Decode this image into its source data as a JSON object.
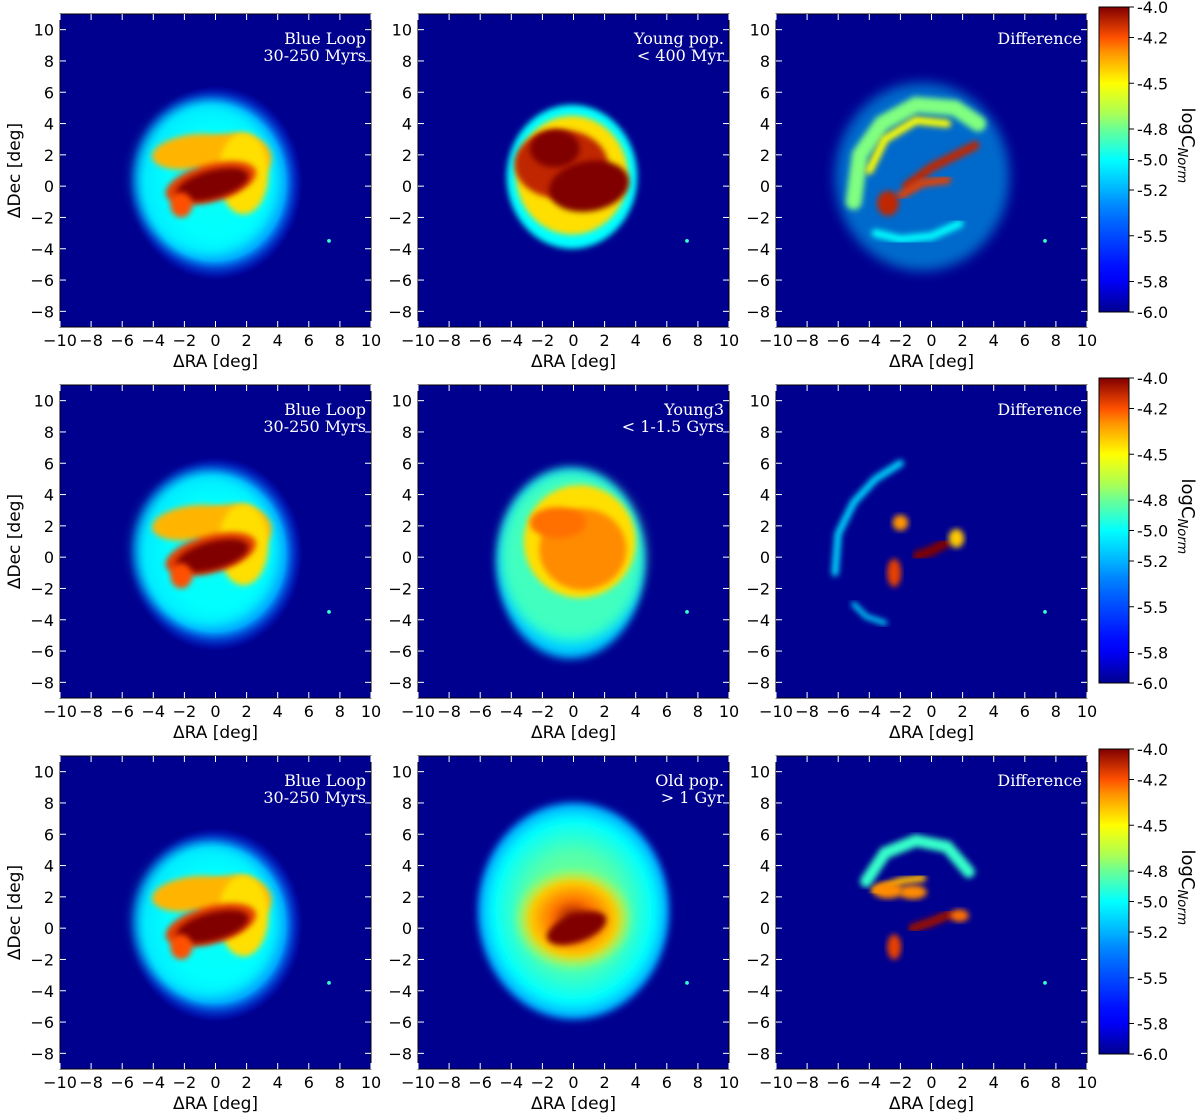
{
  "chart_data": {
    "type": "heatmap",
    "xlabel": "ΔRA [deg]",
    "ylabel": "ΔDec [deg]",
    "xlim": [
      -10,
      10
    ],
    "ylim": [
      -9,
      11
    ],
    "xticks": [
      -10,
      -8,
      -6,
      -4,
      -2,
      0,
      2,
      4,
      6,
      8,
      10
    ],
    "yticks": [
      -8,
      -6,
      -4,
      -2,
      0,
      2,
      4,
      6,
      8,
      10
    ],
    "colorbar": {
      "label": "logC",
      "label_subscript": "Norm",
      "range": [
        -6.0,
        -4.0
      ],
      "ticks": [
        "-4.0",
        "-4.2",
        "-4.5",
        "-4.8",
        "-5.0",
        "-5.2",
        "-5.5",
        "-5.8",
        "-6.0"
      ],
      "colormap": "jet"
    },
    "rows": [
      {
        "panels": [
          {
            "label_lines": [
              "Blue Loop",
              "30-250 Myrs"
            ],
            "map": "blueloop"
          },
          {
            "label_lines": [
              "Young pop.",
              "<  400 Myr"
            ],
            "map": "young400"
          },
          {
            "label_lines": [
              "Difference"
            ],
            "map": "diff1"
          }
        ]
      },
      {
        "panels": [
          {
            "label_lines": [
              "Blue Loop",
              "30-250 Myrs"
            ],
            "map": "blueloop"
          },
          {
            "label_lines": [
              "Young3",
              "< 1-1.5 Gyrs"
            ],
            "map": "young3"
          },
          {
            "label_lines": [
              "Difference"
            ],
            "map": "diff2"
          }
        ]
      },
      {
        "panels": [
          {
            "label_lines": [
              "Blue Loop",
              "30-250 Myrs"
            ],
            "map": "blueloop"
          },
          {
            "label_lines": [
              "Old pop.",
              ">  1 Gyr"
            ],
            "map": "old"
          },
          {
            "label_lines": [
              "Difference"
            ],
            "map": "diff3"
          }
        ]
      }
    ]
  },
  "colors": {
    "background": "#00008f",
    "jet": [
      "#00007f",
      "#0000ff",
      "#007fff",
      "#00ffff",
      "#7fff7f",
      "#ffff00",
      "#ff7f00",
      "#ff0000",
      "#7f0000"
    ]
  }
}
